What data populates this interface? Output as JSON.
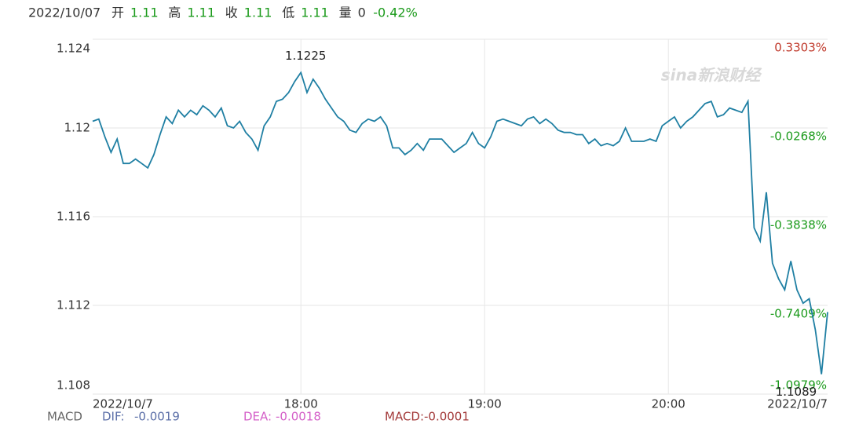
{
  "chart_data": {
    "type": "line",
    "header": {
      "date": "2022/10/07",
      "fields": [
        {
          "label": "开",
          "value": 1.11
        },
        {
          "label": "高",
          "value": 1.11
        },
        {
          "label": "收",
          "value": 1.11
        },
        {
          "label": "低",
          "value": 1.11
        },
        {
          "label": "量",
          "value": 0
        }
      ],
      "change": {
        "value": -0.42,
        "label": "-0.42%"
      }
    },
    "watermark": "sina新浪财经",
    "color": "#1f7fa3",
    "x": [
      "16:52",
      "16:54",
      "16:56",
      "16:58",
      "17:00",
      "17:02",
      "17:04",
      "17:06",
      "17:08",
      "17:10",
      "17:12",
      "17:14",
      "17:16",
      "17:18",
      "17:20",
      "17:22",
      "17:24",
      "17:26",
      "17:28",
      "17:30",
      "17:32",
      "17:34",
      "17:36",
      "17:38",
      "17:40",
      "17:42",
      "17:44",
      "17:46",
      "17:48",
      "17:50",
      "17:52",
      "17:54",
      "17:56",
      "17:58",
      "18:00",
      "18:02",
      "18:04",
      "18:06",
      "18:08",
      "18:10",
      "18:12",
      "18:14",
      "18:16",
      "18:18",
      "18:20",
      "18:22",
      "18:24",
      "18:26",
      "18:28",
      "18:30",
      "18:32",
      "18:34",
      "18:36",
      "18:38",
      "18:40",
      "18:42",
      "18:44",
      "18:46",
      "18:48",
      "18:50",
      "18:52",
      "18:54",
      "18:56",
      "18:58",
      "19:00",
      "19:02",
      "19:04",
      "19:06",
      "19:08",
      "19:10",
      "19:12",
      "19:14",
      "19:16",
      "19:18",
      "19:20",
      "19:22",
      "19:24",
      "19:26",
      "19:28",
      "19:30",
      "19:32",
      "19:34",
      "19:36",
      "19:38",
      "19:40",
      "19:42",
      "19:44",
      "19:46",
      "19:48",
      "19:50",
      "19:52",
      "19:54",
      "19:56",
      "19:58",
      "20:00",
      "20:02",
      "20:04",
      "20:06",
      "20:08",
      "20:10",
      "20:12",
      "20:14",
      "20:16",
      "20:18",
      "20:20",
      "20:22",
      "20:24",
      "20:26",
      "20:28",
      "20:30",
      "20:32",
      "20:34",
      "20:36",
      "20:38",
      "20:40",
      "20:42",
      "20:44",
      "20:46",
      "20:48",
      "20:50",
      "20:52"
    ],
    "values": [
      1.1203,
      1.1204,
      1.1196,
      1.1189,
      1.1195,
      1.1184,
      1.1184,
      1.1186,
      1.1184,
      1.1182,
      1.1188,
      1.1197,
      1.1205,
      1.1202,
      1.1208,
      1.1205,
      1.1208,
      1.1206,
      1.121,
      1.1208,
      1.1205,
      1.1209,
      1.1201,
      1.12,
      1.1203,
      1.1198,
      1.1195,
      1.119,
      1.1201,
      1.1205,
      1.1212,
      1.1213,
      1.1216,
      1.1221,
      1.1225,
      1.1216,
      1.1222,
      1.1218,
      1.1213,
      1.1209,
      1.1205,
      1.1203,
      1.1199,
      1.1198,
      1.1202,
      1.1204,
      1.1203,
      1.1205,
      1.1201,
      1.1191,
      1.1191,
      1.1188,
      1.119,
      1.1193,
      1.119,
      1.1195,
      1.1195,
      1.1195,
      1.1192,
      1.1189,
      1.1191,
      1.1193,
      1.1198,
      1.1193,
      1.1191,
      1.1196,
      1.1203,
      1.1204,
      1.1203,
      1.1202,
      1.1201,
      1.1204,
      1.1205,
      1.1202,
      1.1204,
      1.1202,
      1.1199,
      1.1198,
      1.1198,
      1.1197,
      1.1197,
      1.1193,
      1.1195,
      1.1192,
      1.1193,
      1.1192,
      1.1194,
      1.12,
      1.1194,
      1.1194,
      1.1194,
      1.1195,
      1.1194,
      1.1201,
      1.1203,
      1.1205,
      1.12,
      1.1203,
      1.1205,
      1.1208,
      1.1211,
      1.1212,
      1.1205,
      1.1206,
      1.1209,
      1.1208,
      1.1207,
      1.1212,
      1.1155,
      1.1149,
      1.1171,
      1.1139,
      1.1132,
      1.1127,
      1.114,
      1.1127,
      1.1121,
      1.1123,
      1.1109,
      1.1089,
      1.1117
    ],
    "xlim": [
      "16:52",
      "20:52"
    ],
    "xticks": [
      {
        "value": "16:52",
        "label": "2022/10/7"
      },
      "18:00",
      "19:00",
      "20:00",
      {
        "value": "20:52",
        "label": "2022/10/7"
      }
    ],
    "ylim": [
      1.108,
      1.124
    ],
    "yticks": [
      1.124,
      1.12,
      1.116,
      1.112,
      1.108
    ],
    "y2lim": [
      -1.0979,
      0.3303
    ],
    "y2ticks": [
      {
        "value": 0.3303,
        "label": "0.3303%"
      },
      {
        "value": -0.0268,
        "label": "-0.0268%"
      },
      {
        "value": -0.3838,
        "label": "-0.3838%"
      },
      {
        "value": -0.7409,
        "label": "-0.7409%"
      },
      {
        "value": -1.0979,
        "label": "-1.0979%"
      }
    ],
    "grid": true,
    "annotations": [
      {
        "x": "18:00",
        "value": 1.1225
      },
      {
        "x": "20:50",
        "value": 1.1089
      }
    ],
    "macd": {
      "title": "MACD",
      "items": [
        {
          "label": "DIF:",
          "value": -0.0019,
          "color": "#5b6fa8"
        },
        {
          "label": "DEA:",
          "value": -0.0018,
          "color": "#d45fc8"
        },
        {
          "label": "MACD:",
          "value": -0.0001,
          "color": "#a33a3a"
        }
      ]
    }
  }
}
